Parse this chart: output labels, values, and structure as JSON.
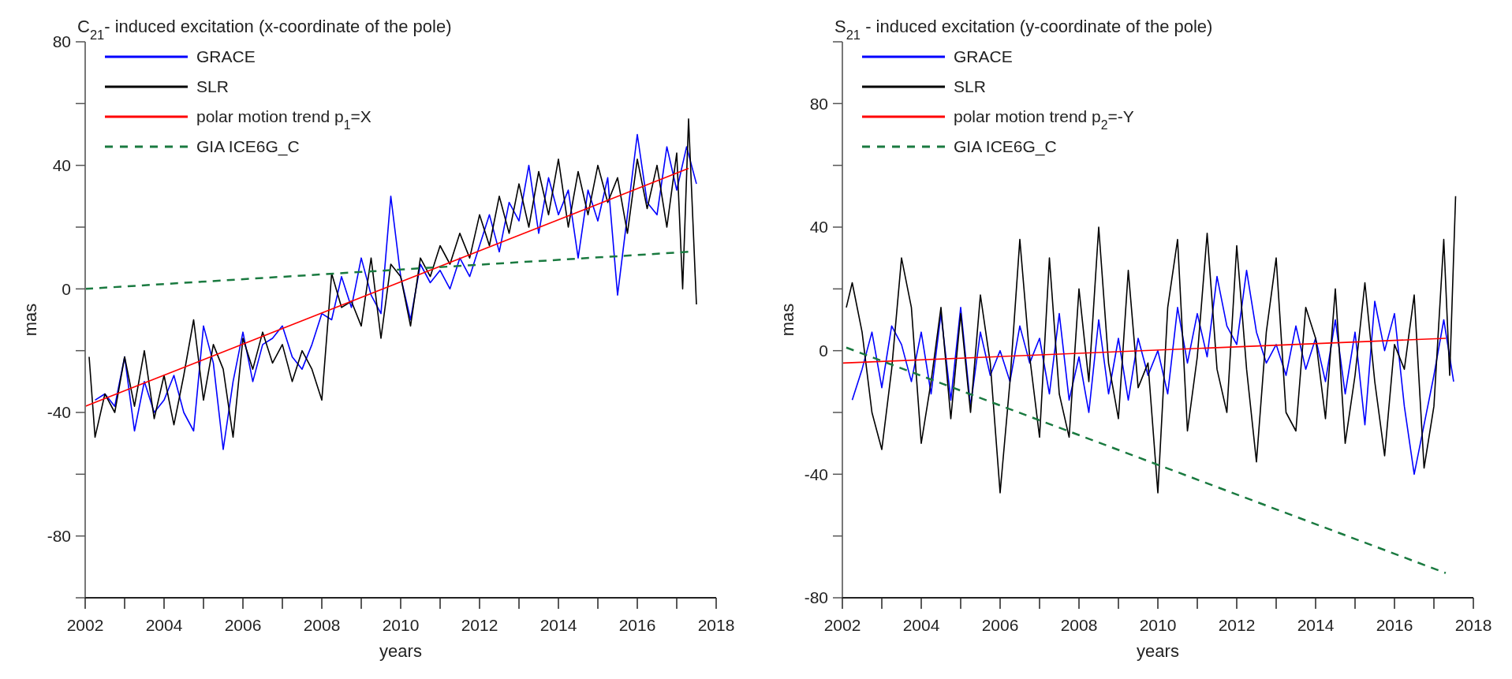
{
  "chart_data": [
    {
      "type": "line",
      "title": "C$_{21}$- induced excitation (x-coordinate of the pole)",
      "xlabel": "years",
      "ylabel": "mas",
      "xlim": [
        2002,
        2018
      ],
      "ylim": [
        -100,
        80
      ],
      "xticks": [
        2002,
        {
          "value": 2003,
          "label": null
        },
        2004,
        {
          "value": 2005,
          "label": null
        },
        2006,
        {
          "value": 2007,
          "label": null
        },
        2008,
        {
          "value": 2009,
          "label": null
        },
        2010,
        {
          "value": 2011,
          "label": null
        },
        2012,
        {
          "value": 2013,
          "label": null
        },
        2014,
        {
          "value": 2015,
          "label": null
        },
        2016,
        {
          "value": 2017,
          "label": null
        },
        2018
      ],
      "yticks": [
        {
          "value": -100,
          "label": null
        },
        -80,
        {
          "value": -60,
          "label": null
        },
        -40,
        {
          "value": -20,
          "label": null
        },
        0,
        {
          "value": 20,
          "label": null
        },
        40,
        {
          "value": 60,
          "label": null
        },
        80
      ],
      "legend": "top left",
      "series": [
        {
          "name": "GRACE",
          "color": "#0000ff",
          "x": [
            2002.25,
            2002.5,
            2002.75,
            2003,
            2003.25,
            2003.5,
            2003.75,
            2004,
            2004.25,
            2004.5,
            2004.75,
            2005,
            2005.25,
            2005.5,
            2005.75,
            2006,
            2006.25,
            2006.5,
            2006.75,
            2007,
            2007.25,
            2007.5,
            2007.75,
            2008,
            2008.25,
            2008.5,
            2008.75,
            2009,
            2009.25,
            2009.5,
            2009.75,
            2010,
            2010.25,
            2010.5,
            2010.75,
            2011,
            2011.25,
            2011.5,
            2011.75,
            2012,
            2012.25,
            2012.5,
            2012.75,
            2013,
            2013.25,
            2013.5,
            2013.75,
            2014,
            2014.25,
            2014.5,
            2014.75,
            2015,
            2015.25,
            2015.5,
            2015.75,
            2016,
            2016.25,
            2016.5,
            2016.75,
            2017,
            2017.25,
            2017.5
          ],
          "values": [
            -36,
            -34,
            -38,
            -22,
            -46,
            -30,
            -40,
            -36,
            -28,
            -40,
            -46,
            -12,
            -24,
            -52,
            -30,
            -14,
            -30,
            -18,
            -16,
            -12,
            -22,
            -26,
            -18,
            -8,
            -10,
            4,
            -6,
            10,
            -2,
            -8,
            30,
            4,
            -10,
            8,
            2,
            6,
            0,
            10,
            4,
            14,
            24,
            12,
            28,
            22,
            40,
            18,
            36,
            24,
            32,
            10,
            32,
            22,
            36,
            -2,
            24,
            50,
            28,
            24,
            46,
            32,
            46,
            34
          ]
        },
        {
          "name": "SLR",
          "color": "#000000",
          "x": [
            2002.1,
            2002.25,
            2002.5,
            2002.75,
            2003,
            2003.25,
            2003.5,
            2003.75,
            2004,
            2004.25,
            2004.5,
            2004.75,
            2005,
            2005.25,
            2005.5,
            2005.75,
            2006,
            2006.25,
            2006.5,
            2006.75,
            2007,
            2007.25,
            2007.5,
            2007.75,
            2008,
            2008.25,
            2008.5,
            2008.75,
            2009,
            2009.25,
            2009.5,
            2009.75,
            2010,
            2010.25,
            2010.5,
            2010.75,
            2011,
            2011.25,
            2011.5,
            2011.75,
            2012,
            2012.25,
            2012.5,
            2012.75,
            2013,
            2013.25,
            2013.5,
            2013.75,
            2014,
            2014.25,
            2014.5,
            2014.75,
            2015,
            2015.25,
            2015.5,
            2015.75,
            2016,
            2016.25,
            2016.5,
            2016.75,
            2017,
            2017.15,
            2017.3,
            2017.5
          ],
          "values": [
            -22,
            -48,
            -34,
            -40,
            -22,
            -38,
            -20,
            -42,
            -28,
            -44,
            -28,
            -10,
            -36,
            -18,
            -26,
            -48,
            -16,
            -26,
            -14,
            -24,
            -18,
            -30,
            -20,
            -26,
            -36,
            5,
            -6,
            -4,
            -12,
            10,
            -16,
            8,
            4,
            -12,
            10,
            4,
            14,
            8,
            18,
            10,
            24,
            14,
            30,
            18,
            34,
            20,
            38,
            24,
            42,
            20,
            38,
            24,
            40,
            28,
            36,
            18,
            42,
            26,
            40,
            20,
            44,
            0,
            55,
            -5
          ]
        },
        {
          "name": "polar motion trend p$_{1}$=X",
          "color": "#ff0000",
          "x": [
            2002,
            2017.3
          ],
          "values": [
            -38,
            39
          ]
        },
        {
          "name": "GIA ICE6G_C",
          "color": "#1a7a40",
          "line_style": "dashed",
          "x": [
            2002,
            2017.3
          ],
          "values": [
            0,
            12
          ]
        }
      ]
    },
    {
      "type": "line",
      "title": "S$_{21}$ - induced excitation (y-coordinate of the pole)",
      "xlabel": "years",
      "ylabel": "mas",
      "xlim": [
        2002,
        2018
      ],
      "ylim": [
        -80,
        100
      ],
      "xticks": [
        2002,
        {
          "value": 2003,
          "label": null
        },
        2004,
        {
          "value": 2005,
          "label": null
        },
        2006,
        {
          "value": 2007,
          "label": null
        },
        2008,
        {
          "value": 2009,
          "label": null
        },
        2010,
        {
          "value": 2011,
          "label": null
        },
        2012,
        {
          "value": 2013,
          "label": null
        },
        2014,
        {
          "value": 2015,
          "label": null
        },
        2016,
        {
          "value": 2017,
          "label": null
        },
        2018
      ],
      "yticks": [
        -80,
        {
          "value": -60,
          "label": null
        },
        -40,
        {
          "value": -20,
          "label": null
        },
        0,
        {
          "value": 20,
          "label": null
        },
        40,
        {
          "value": 60,
          "label": null
        },
        80,
        {
          "value": 100,
          "label": null
        }
      ],
      "legend": "top left",
      "series": [
        {
          "name": "GRACE",
          "color": "#0000ff",
          "x": [
            2002.25,
            2002.5,
            2002.75,
            2003,
            2003.25,
            2003.5,
            2003.75,
            2004,
            2004.25,
            2004.5,
            2004.75,
            2005,
            2005.25,
            2005.5,
            2005.75,
            2006,
            2006.25,
            2006.5,
            2006.75,
            2007,
            2007.25,
            2007.5,
            2007.75,
            2008,
            2008.25,
            2008.5,
            2008.75,
            2009,
            2009.25,
            2009.5,
            2009.75,
            2010,
            2010.25,
            2010.5,
            2010.75,
            2011,
            2011.25,
            2011.5,
            2011.75,
            2012,
            2012.25,
            2012.5,
            2012.75,
            2013,
            2013.25,
            2013.5,
            2013.75,
            2014,
            2014.25,
            2014.5,
            2014.75,
            2015,
            2015.25,
            2015.5,
            2015.75,
            2016,
            2016.25,
            2016.5,
            2016.75,
            2017,
            2017.25,
            2017.5
          ],
          "values": [
            -16,
            -6,
            6,
            -12,
            8,
            2,
            -10,
            6,
            -14,
            12,
            -16,
            14,
            -18,
            6,
            -8,
            0,
            -10,
            8,
            -4,
            4,
            -14,
            12,
            -16,
            -2,
            -20,
            10,
            -14,
            4,
            -16,
            4,
            -8,
            0,
            -14,
            14,
            -4,
            12,
            -2,
            24,
            8,
            2,
            26,
            6,
            -4,
            2,
            -8,
            8,
            -6,
            4,
            -10,
            10,
            -14,
            6,
            -24,
            16,
            0,
            12,
            -18,
            -40,
            -24,
            -8,
            10,
            -10
          ]
        },
        {
          "name": "SLR",
          "color": "#000000",
          "x": [
            2002.1,
            2002.25,
            2002.5,
            2002.75,
            2003,
            2003.25,
            2003.5,
            2003.75,
            2004,
            2004.25,
            2004.5,
            2004.75,
            2005,
            2005.25,
            2005.5,
            2005.75,
            2006,
            2006.25,
            2006.5,
            2006.75,
            2007,
            2007.25,
            2007.5,
            2007.75,
            2008,
            2008.25,
            2008.5,
            2008.75,
            2009,
            2009.25,
            2009.5,
            2009.75,
            2010,
            2010.25,
            2010.5,
            2010.75,
            2011,
            2011.25,
            2011.5,
            2011.75,
            2012,
            2012.25,
            2012.5,
            2012.75,
            2013,
            2013.25,
            2013.5,
            2013.75,
            2014,
            2014.25,
            2014.5,
            2014.75,
            2015,
            2015.25,
            2015.5,
            2015.75,
            2016,
            2016.25,
            2016.5,
            2016.75,
            2017,
            2017.25,
            2017.4,
            2017.55
          ],
          "values": [
            14,
            22,
            6,
            -20,
            -32,
            -6,
            30,
            14,
            -30,
            -10,
            14,
            -22,
            12,
            -20,
            18,
            -4,
            -46,
            -10,
            36,
            -2,
            -28,
            30,
            -14,
            -28,
            20,
            -10,
            40,
            -4,
            -22,
            26,
            -12,
            -4,
            -46,
            14,
            36,
            -26,
            -2,
            38,
            -6,
            -20,
            34,
            -6,
            -36,
            6,
            30,
            -20,
            -26,
            14,
            4,
            -22,
            20,
            -30,
            -8,
            22,
            -10,
            -34,
            2,
            -6,
            18,
            -38,
            -18,
            36,
            -8,
            50
          ]
        },
        {
          "name": "polar motion trend p$_{2}$=-Y",
          "color": "#ff0000",
          "x": [
            2002,
            2017.3
          ],
          "values": [
            -4,
            4
          ]
        },
        {
          "name": "GIA ICE6G_C",
          "color": "#1a7a40",
          "line_style": "dashed",
          "x": [
            2002.1,
            2017.3
          ],
          "values": [
            1,
            -72
          ]
        }
      ]
    }
  ]
}
